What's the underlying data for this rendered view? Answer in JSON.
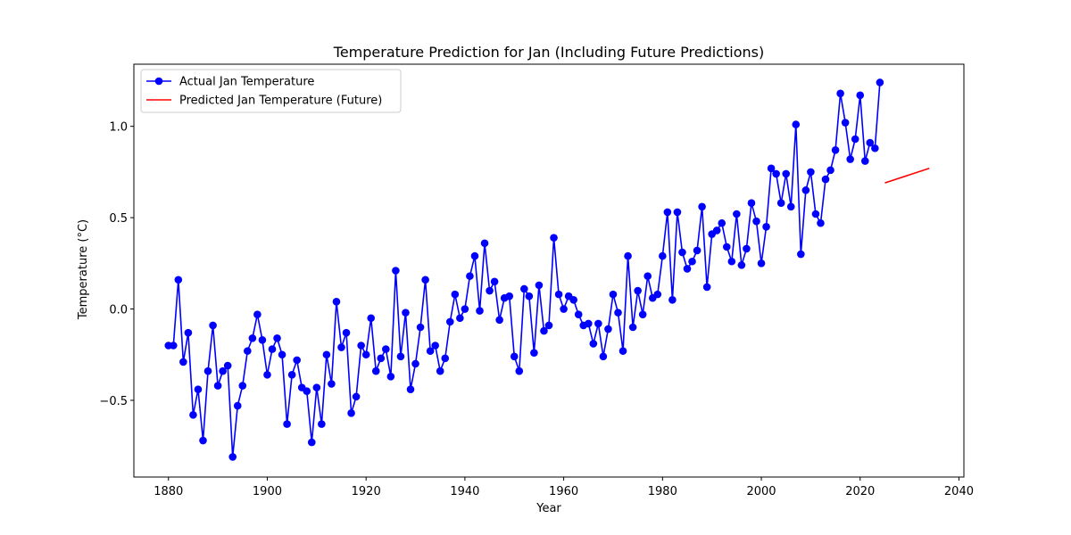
{
  "chart_data": {
    "type": "line",
    "title": "Temperature Prediction for Jan (Including Future Predictions)",
    "xlabel": "Year",
    "ylabel": "Temperature (°C)",
    "xlim": [
      1873,
      2041
    ],
    "ylim": [
      -0.92,
      1.34
    ],
    "xticks": [
      1880,
      1900,
      1920,
      1940,
      1960,
      1980,
      2000,
      2020,
      2040
    ],
    "yticks": [
      -0.5,
      0.0,
      0.5,
      1.0
    ],
    "ytick_labels": [
      "−0.5",
      "0.0",
      "0.5",
      "1.0"
    ],
    "grid": false,
    "legend_position": "top-left",
    "series": [
      {
        "name": "Actual Jan Temperature",
        "color": "#0000ff",
        "marker": "circle",
        "x": [
          1880,
          1881,
          1882,
          1883,
          1884,
          1885,
          1886,
          1887,
          1888,
          1889,
          1890,
          1891,
          1892,
          1893,
          1894,
          1895,
          1896,
          1897,
          1898,
          1899,
          1900,
          1901,
          1902,
          1903,
          1904,
          1905,
          1906,
          1907,
          1908,
          1909,
          1910,
          1911,
          1912,
          1913,
          1914,
          1915,
          1916,
          1917,
          1918,
          1919,
          1920,
          1921,
          1922,
          1923,
          1924,
          1925,
          1926,
          1927,
          1928,
          1929,
          1930,
          1931,
          1932,
          1933,
          1934,
          1935,
          1936,
          1937,
          1938,
          1939,
          1940,
          1941,
          1942,
          1943,
          1944,
          1945,
          1946,
          1947,
          1948,
          1949,
          1950,
          1951,
          1952,
          1953,
          1954,
          1955,
          1956,
          1957,
          1958,
          1959,
          1960,
          1961,
          1962,
          1963,
          1964,
          1965,
          1966,
          1967,
          1968,
          1969,
          1970,
          1971,
          1972,
          1973,
          1974,
          1975,
          1976,
          1977,
          1978,
          1979,
          1980,
          1981,
          1982,
          1983,
          1984,
          1985,
          1986,
          1987,
          1988,
          1989,
          1990,
          1991,
          1992,
          1993,
          1994,
          1995,
          1996,
          1997,
          1998,
          1999,
          2000,
          2001,
          2002,
          2003,
          2004,
          2005,
          2006,
          2007,
          2008,
          2009,
          2010,
          2011,
          2012,
          2013,
          2014,
          2015,
          2016,
          2017,
          2018,
          2019,
          2020,
          2021,
          2022,
          2023,
          2024
        ],
        "values": [
          -0.2,
          -0.2,
          0.16,
          -0.29,
          -0.13,
          -0.58,
          -0.44,
          -0.72,
          -0.34,
          -0.09,
          -0.42,
          -0.34,
          -0.31,
          -0.81,
          -0.53,
          -0.42,
          -0.23,
          -0.16,
          -0.03,
          -0.17,
          -0.36,
          -0.22,
          -0.16,
          -0.25,
          -0.63,
          -0.36,
          -0.28,
          -0.43,
          -0.45,
          -0.73,
          -0.43,
          -0.63,
          -0.25,
          -0.41,
          0.04,
          -0.21,
          -0.13,
          -0.57,
          -0.48,
          -0.2,
          -0.25,
          -0.05,
          -0.34,
          -0.27,
          -0.22,
          -0.37,
          0.21,
          -0.26,
          -0.02,
          -0.44,
          -0.3,
          -0.1,
          0.16,
          -0.23,
          -0.2,
          -0.34,
          -0.27,
          -0.07,
          0.08,
          -0.05,
          0.0,
          0.18,
          0.29,
          -0.01,
          0.36,
          0.1,
          0.15,
          -0.06,
          0.06,
          0.07,
          -0.26,
          -0.34,
          0.11,
          0.07,
          -0.24,
          0.13,
          -0.12,
          -0.09,
          0.39,
          0.08,
          0.0,
          0.07,
          0.05,
          -0.03,
          -0.09,
          -0.08,
          -0.19,
          -0.08,
          -0.26,
          -0.11,
          0.08,
          -0.02,
          -0.23,
          0.29,
          -0.1,
          0.1,
          -0.03,
          0.18,
          0.06,
          0.08,
          0.29,
          0.53,
          0.05,
          0.53,
          0.31,
          0.22,
          0.26,
          0.32,
          0.56,
          0.12,
          0.41,
          0.43,
          0.47,
          0.34,
          0.26,
          0.52,
          0.24,
          0.33,
          0.58,
          0.48,
          0.25,
          0.45,
          0.77,
          0.74,
          0.58,
          0.74,
          0.56,
          1.01,
          0.3,
          0.65,
          0.75,
          0.52,
          0.47,
          0.71,
          0.76,
          0.87,
          1.18,
          1.02,
          0.82,
          0.93,
          1.17,
          0.81,
          0.91,
          0.88,
          1.24
        ]
      },
      {
        "name": "Predicted Jan Temperature (Future)",
        "color": "#ff0000",
        "marker": "none",
        "x": [
          2025,
          2034
        ],
        "values": [
          0.69,
          0.77
        ]
      }
    ]
  }
}
